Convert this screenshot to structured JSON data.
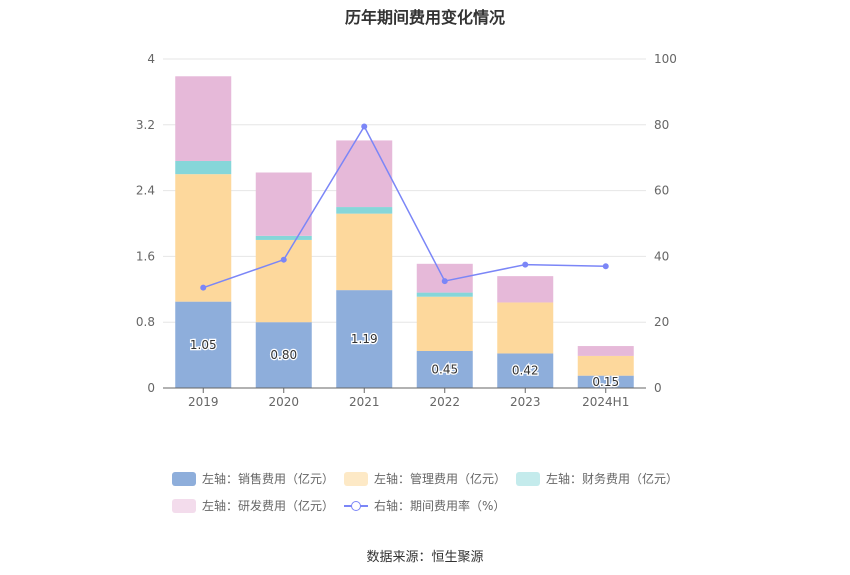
{
  "chart_data": {
    "type": "bar",
    "title": "历年期间费用变化情况",
    "categories": [
      "2019",
      "2020",
      "2021",
      "2022",
      "2023",
      "2024H1"
    ],
    "left_axis": {
      "ylim": [
        0,
        4
      ],
      "ticks": [
        "0",
        "0.8",
        "1.6",
        "2.4",
        "3.2",
        "4"
      ]
    },
    "right_axis": {
      "ylim": [
        0,
        100
      ],
      "ticks": [
        "0",
        "20",
        "40",
        "60",
        "80",
        "100"
      ]
    },
    "series": [
      {
        "name": "左轴：销售费用（亿元）",
        "type": "bar",
        "color": "#8eaedb",
        "values": [
          1.05,
          0.8,
          1.19,
          0.45,
          0.42,
          0.15
        ],
        "labels": [
          "1.05",
          "0.80",
          "1.19",
          "0.45",
          "0.42",
          "0.15"
        ]
      },
      {
        "name": "左轴：管理费用（亿元）",
        "type": "bar",
        "color": "#fdd89c",
        "values": [
          1.55,
          1.0,
          0.93,
          0.66,
          0.62,
          0.24
        ]
      },
      {
        "name": "左轴：财务费用（亿元）",
        "type": "bar",
        "color": "#86d6d9",
        "values": [
          0.16,
          0.05,
          0.08,
          0.05,
          0.0,
          0.0
        ]
      },
      {
        "name": "左轴：研发费用（亿元）",
        "type": "bar",
        "color": "#e6b9d9",
        "values": [
          1.03,
          0.77,
          0.81,
          0.35,
          0.32,
          0.12
        ]
      },
      {
        "name": "右轴：期间费用率（%）",
        "type": "line",
        "color": "#7b86f7",
        "values": [
          30.5,
          39.0,
          79.5,
          32.5,
          37.5,
          37.0
        ]
      }
    ],
    "legend_placement": "bottom",
    "grid": true
  },
  "legend_colors": {
    "sales": "#8eaedb",
    "admin": "#fde9c6",
    "finance": "#c4ebec",
    "rd": "#f3dcec",
    "rate": "#7b86f7"
  },
  "source": "数据来源：恒生聚源"
}
